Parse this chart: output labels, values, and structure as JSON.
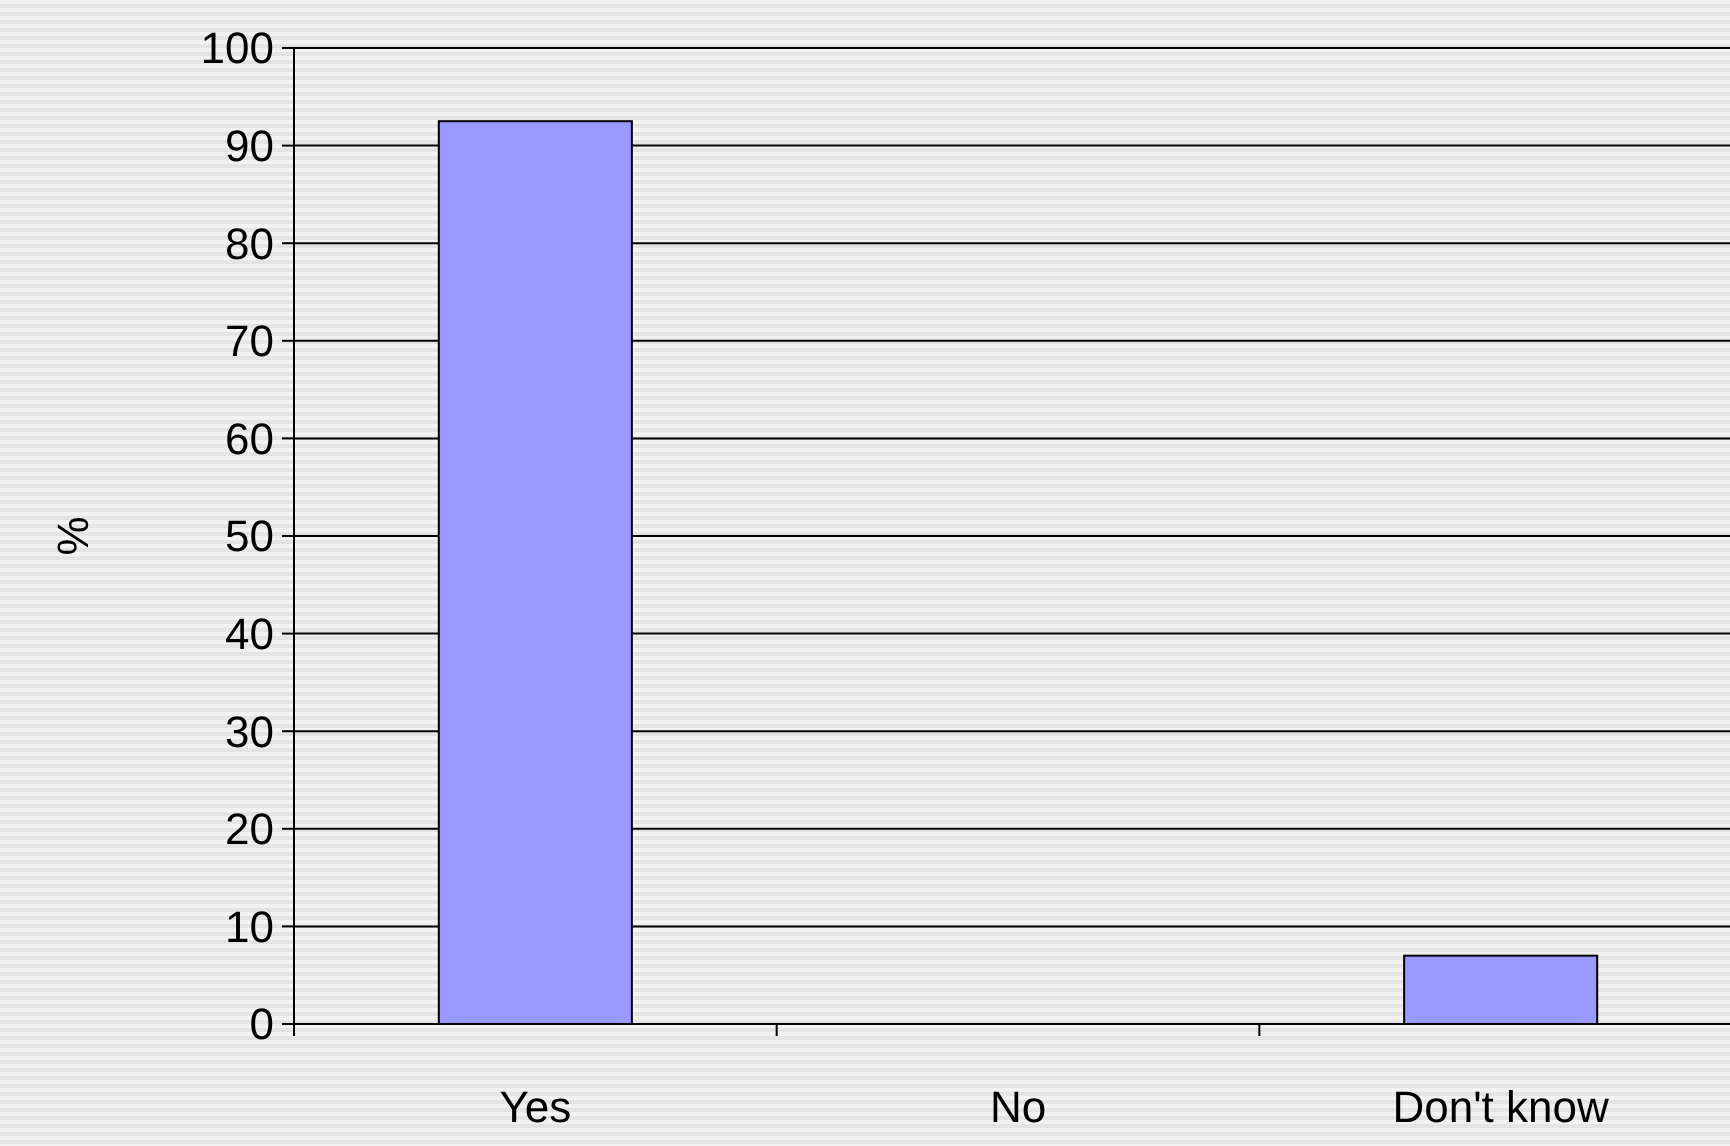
{
  "chart_data": {
    "type": "bar",
    "ylabel": "%",
    "categories": [
      "Yes",
      "No",
      "Don't know"
    ],
    "values": [
      92.5,
      0,
      7
    ],
    "color": "#9999ff",
    "ylim": [
      0,
      100
    ],
    "yticks": [
      0,
      10,
      20,
      30,
      40,
      50,
      60,
      70,
      80,
      90,
      100
    ],
    "grid": "y"
  }
}
